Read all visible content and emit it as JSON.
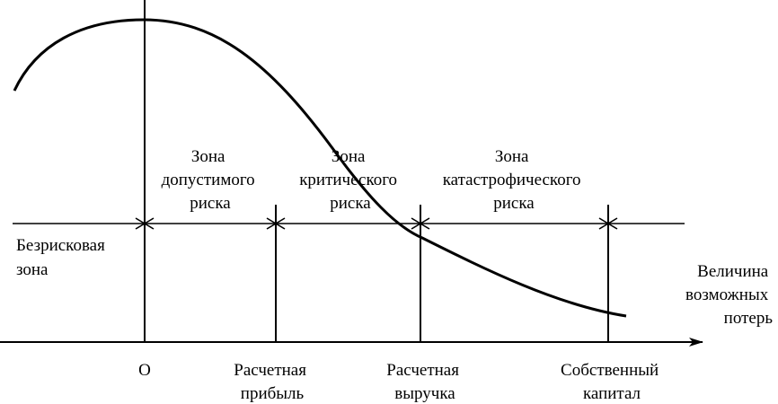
{
  "zones": {
    "riskless": [
      "Безрисковая",
      "зона"
    ],
    "acceptable": [
      "Зона",
      "допустимого",
      "риска"
    ],
    "critical": [
      "Зона",
      "критического",
      "риска"
    ],
    "catastrophic": [
      "Зона",
      "катастрофического",
      "риска"
    ]
  },
  "axis_title": [
    "Величина",
    "возможных",
    "потерь"
  ],
  "markers": {
    "origin": [
      "О"
    ],
    "profit": [
      "Расчетная",
      "прибыль"
    ],
    "revenue": [
      "Расчетная",
      "выручка"
    ],
    "capital": [
      "Собственный",
      "капитал"
    ]
  },
  "colors": {
    "line": "#000000",
    "background": "#ffffff"
  }
}
